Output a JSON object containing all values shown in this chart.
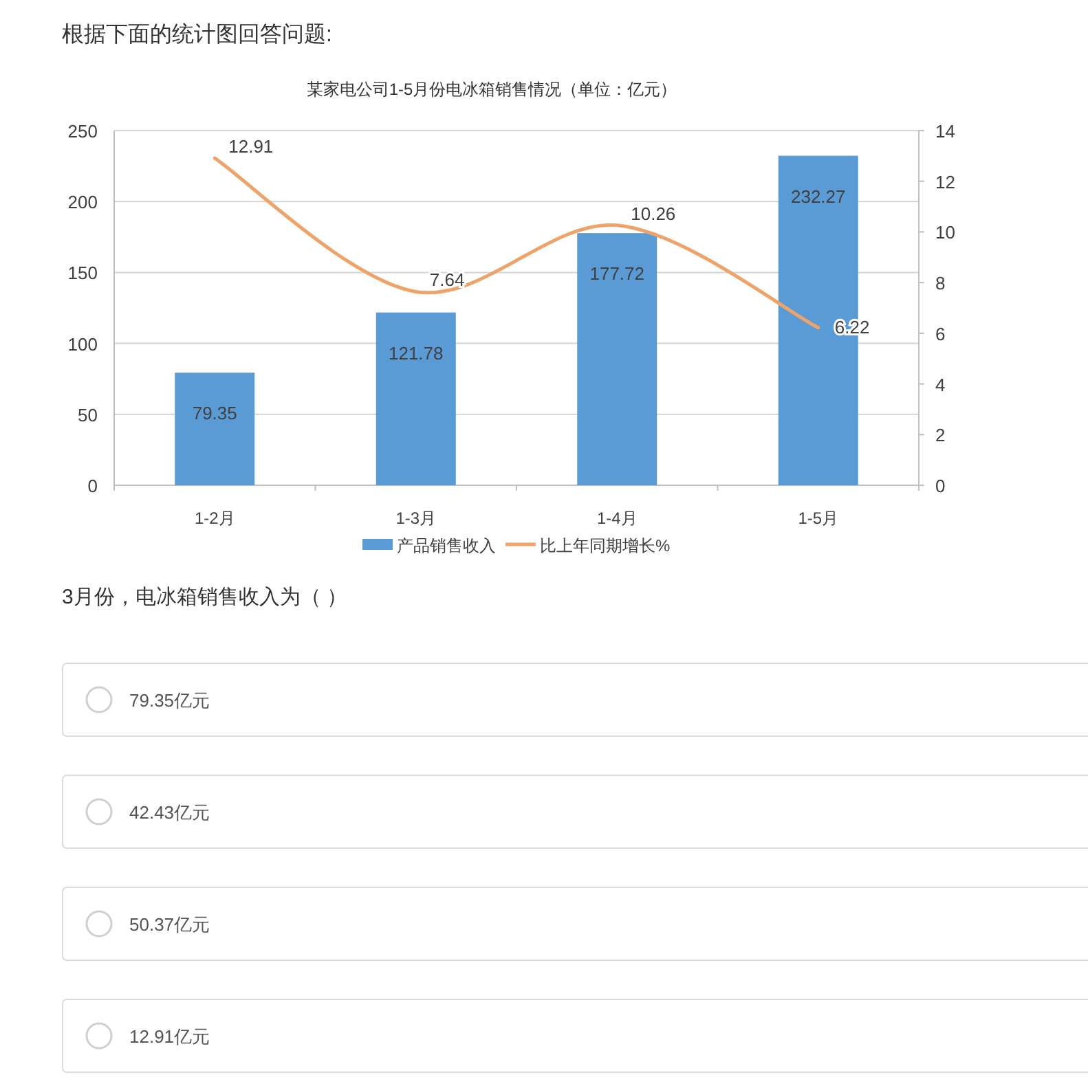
{
  "chart_data": {
    "type": "bar",
    "title": "某家电公司1-5月份电冰箱销售情况（单位：亿元）",
    "categories": [
      "1-2月",
      "1-3月",
      "1-4月",
      "1-5月"
    ],
    "series": [
      {
        "name": "产品销售收入",
        "color": "#5b9bd5",
        "values": [
          79.35,
          121.78,
          177.72,
          232.27
        ]
      },
      {
        "name": "比上年同期增长%",
        "type": "line",
        "axis": "y2",
        "color": "#eea36a",
        "values": [
          12.91,
          7.64,
          10.26,
          6.22
        ]
      }
    ],
    "ylim": [
      0,
      250
    ],
    "yticks": [
      0,
      50,
      100,
      150,
      200,
      250
    ],
    "y2lim": [
      0,
      14
    ],
    "y2ticks": [
      0,
      2,
      4,
      6,
      8,
      10,
      12,
      14
    ],
    "grid": "y",
    "legend": "bottom",
    "data_labels": true,
    "marker": "none",
    "line_style": "solid",
    "annotations": [
      "根据下面的统计图回答问题:",
      "3月份，电冰箱销售收入为（ ）",
      "79.35亿元",
      "42.43亿元",
      "50.37亿元",
      "12.91亿元"
    ]
  }
}
